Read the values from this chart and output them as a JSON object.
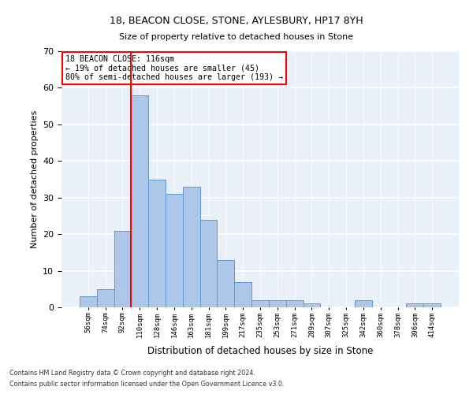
{
  "title1": "18, BEACON CLOSE, STONE, AYLESBURY, HP17 8YH",
  "title2": "Size of property relative to detached houses in Stone",
  "xlabel": "Distribution of detached houses by size in Stone",
  "ylabel": "Number of detached properties",
  "categories": [
    "56sqm",
    "74sqm",
    "92sqm",
    "110sqm",
    "128sqm",
    "146sqm",
    "163sqm",
    "181sqm",
    "199sqm",
    "217sqm",
    "235sqm",
    "253sqm",
    "271sqm",
    "289sqm",
    "307sqm",
    "325sqm",
    "342sqm",
    "360sqm",
    "378sqm",
    "396sqm",
    "414sqm"
  ],
  "values": [
    3,
    5,
    21,
    58,
    35,
    31,
    33,
    24,
    13,
    7,
    2,
    2,
    2,
    1,
    0,
    0,
    2,
    0,
    0,
    1,
    1
  ],
  "bar_color": "#aec6e8",
  "bar_edge_color": "#5b9bd5",
  "red_line_index": 3,
  "annotation_line1": "18 BEACON CLOSE: 116sqm",
  "annotation_line2": "← 19% of detached houses are smaller (45)",
  "annotation_line3": "80% of semi-detached houses are larger (193) →",
  "ylim": [
    0,
    70
  ],
  "yticks": [
    0,
    10,
    20,
    30,
    40,
    50,
    60,
    70
  ],
  "background_color": "#eaf0f8",
  "footer1": "Contains HM Land Registry data © Crown copyright and database right 2024.",
  "footer2": "Contains public sector information licensed under the Open Government Licence v3.0."
}
